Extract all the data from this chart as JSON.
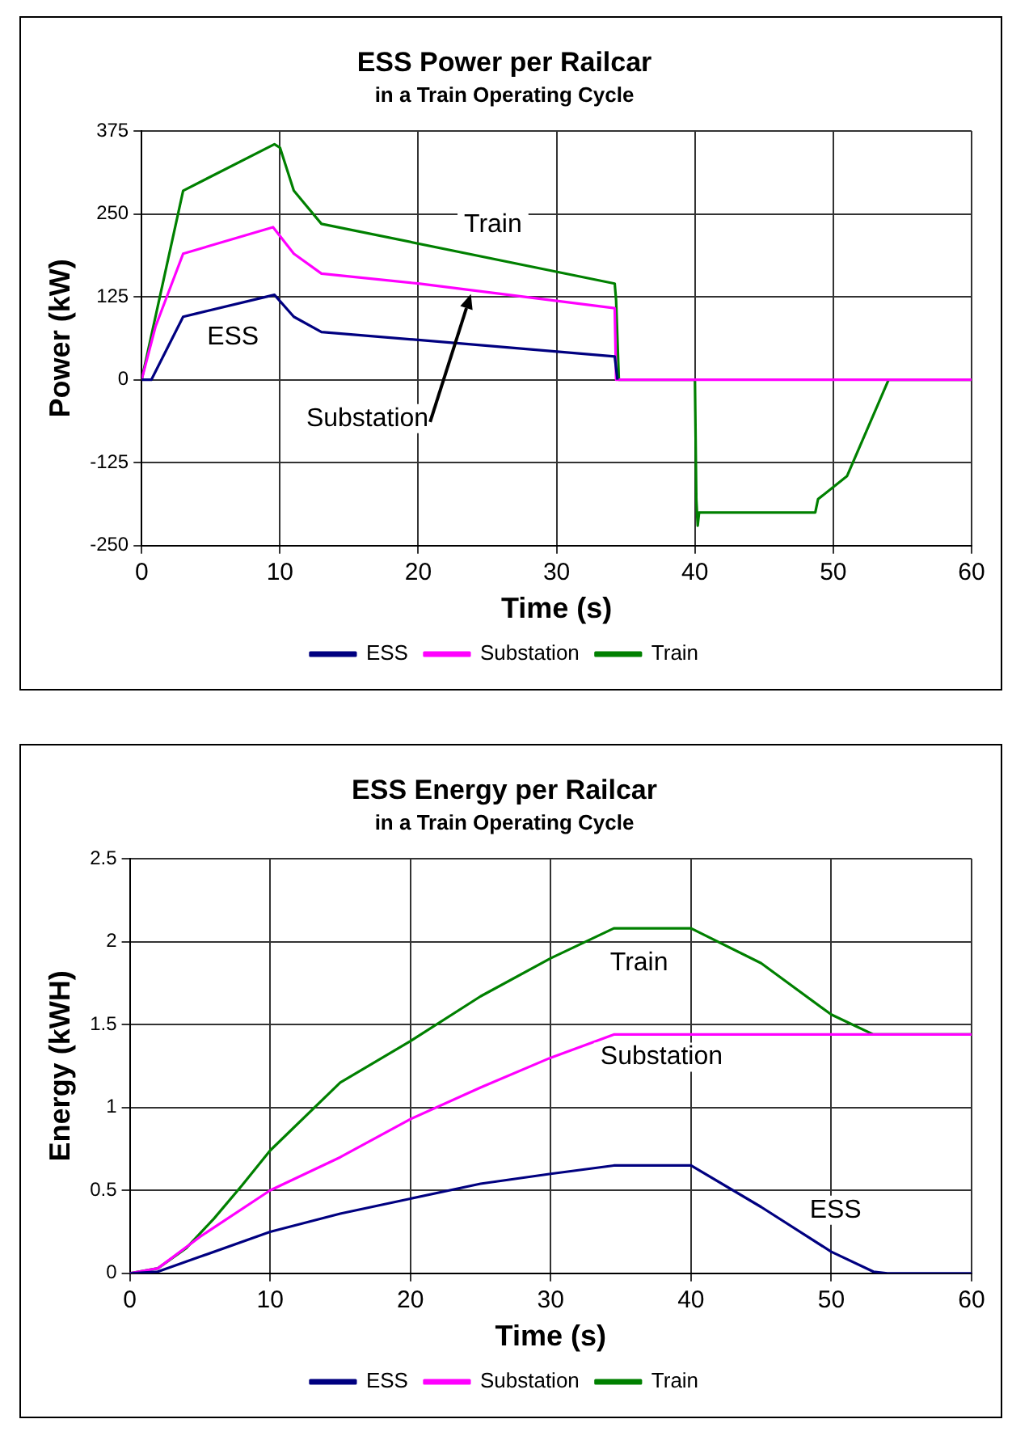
{
  "chart_data": [
    {
      "type": "line",
      "title": "ESS Power per Railcar",
      "subtitle": "in a Train Operating Cycle",
      "xlabel": "Time (s)",
      "ylabel": "Power (kW)",
      "xlim": [
        0,
        60
      ],
      "xticks": [
        0,
        10,
        20,
        30,
        40,
        50,
        60
      ],
      "ylim": [
        -250,
        375
      ],
      "yticks": [
        -250,
        -125,
        0,
        125,
        250,
        375
      ],
      "grid": true,
      "legend": "bottom",
      "marker": "none",
      "line_style": "solid",
      "series": [
        {
          "name": "ESS",
          "color": "#000080",
          "x": [
            0,
            0.7,
            3,
            4,
            9.6,
            11,
            13,
            20,
            34.2,
            34.4
          ],
          "values": [
            0,
            0,
            95,
            100,
            128,
            95,
            72,
            60,
            35,
            0
          ]
        },
        {
          "name": "Substation",
          "color": "#ff00ff",
          "x": [
            0,
            1,
            3,
            9.5,
            11,
            13,
            20,
            34.2,
            34.3,
            40,
            54,
            60
          ],
          "values": [
            0,
            80,
            190,
            230,
            190,
            160,
            145,
            108,
            0,
            0,
            0,
            0
          ]
        },
        {
          "name": "Train",
          "color": "#008000",
          "x": [
            0,
            3,
            9.6,
            10,
            11,
            13,
            34.2,
            34.3,
            34.5,
            40,
            40.1,
            40.2,
            40.3,
            48.7,
            48.9,
            51,
            54,
            60
          ],
          "values": [
            0,
            285,
            355,
            350,
            285,
            235,
            145,
            120,
            0,
            0,
            -180,
            -220,
            -200,
            -200,
            -180,
            -145,
            0,
            0
          ]
        }
      ],
      "annotations": [
        {
          "text": "Train",
          "x": 25.4,
          "y": 234
        },
        {
          "text": "ESS",
          "x": 6.6,
          "y": 64
        },
        {
          "text": "Substation",
          "x": 23.8,
          "y": 129
        }
      ]
    },
    {
      "type": "line",
      "title": "ESS Energy per Railcar",
      "subtitle": "in a Train Operating Cycle",
      "xlabel": "Time (s)",
      "ylabel": "Energy (kWH)",
      "xlim": [
        0,
        60
      ],
      "xticks": [
        0,
        10,
        20,
        30,
        40,
        50,
        60
      ],
      "ylim": [
        0,
        2.5
      ],
      "yticks": [
        0,
        0.5,
        1,
        1.5,
        2,
        2.5
      ],
      "grid": true,
      "legend": "bottom",
      "marker": "none",
      "line_style": "solid",
      "series": [
        {
          "name": "ESS",
          "color": "#000080",
          "x": [
            0,
            2,
            5,
            10,
            15,
            20,
            25,
            30,
            34.5,
            40,
            45,
            50,
            53,
            54,
            60
          ],
          "values": [
            0,
            0.01,
            0.1,
            0.25,
            0.36,
            0.45,
            0.54,
            0.6,
            0.65,
            0.65,
            0.4,
            0.13,
            0.01,
            0,
            0
          ]
        },
        {
          "name": "Substation",
          "color": "#ff00ff",
          "x": [
            0,
            2,
            5,
            10,
            15,
            20,
            25,
            30,
            34.5,
            60
          ],
          "values": [
            0,
            0.03,
            0.22,
            0.5,
            0.7,
            0.93,
            1.12,
            1.3,
            1.44,
            1.44
          ]
        },
        {
          "name": "Train",
          "color": "#008000",
          "x": [
            0,
            2,
            4,
            6,
            8,
            10,
            15,
            20,
            25,
            30,
            34.5,
            40,
            45,
            50,
            53,
            60
          ],
          "values": [
            0,
            0.03,
            0.15,
            0.33,
            0.53,
            0.74,
            1.15,
            1.4,
            1.67,
            1.9,
            2.08,
            2.08,
            1.87,
            1.56,
            1.44,
            1.44
          ]
        }
      ],
      "annotations": [
        {
          "text": "Train",
          "x": 36.3,
          "y": 1.87
        },
        {
          "text": "Substation",
          "x": 37.9,
          "y": 1.44
        },
        {
          "text": "ESS",
          "x": 50.3,
          "y": 0.38
        }
      ]
    }
  ]
}
